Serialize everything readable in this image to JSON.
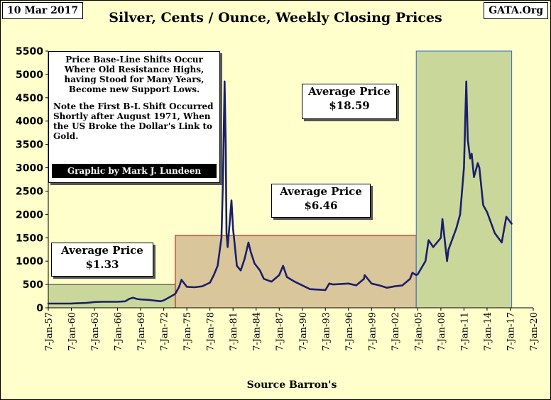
{
  "header": {
    "date": "10 Mar 2017",
    "title": "Silver, Cents / Ounce, Weekly Closing Prices",
    "brand": "GATA.Org"
  },
  "note": {
    "line1": "Price Base-Line Shifts Occur Where Old Resistance Highs, having Stood for Many Years, Become new Support Lows.",
    "line2": "Note the First B-L Shift Occurred Shortly after August 1971, When the US Broke the Dollar's Link to Gold.",
    "credit": "Graphic by Mark J. Lundeen"
  },
  "averages": [
    {
      "label": "Average Price",
      "value": "$1.33"
    },
    {
      "label": "Average Price",
      "value": "$6.46"
    },
    {
      "label": "Average Price",
      "value": "$18.59"
    }
  ],
  "source": "Source Barron's",
  "colors": {
    "background": "#ffffcc",
    "line": "#1a1f6b",
    "era1_fill": "#c9d79b",
    "era2_fill": "#d9c69a",
    "era3_fill": "#c9d79b",
    "era2_border": "#cc0000",
    "era3_border": "#3366cc"
  },
  "chart_data": {
    "type": "line",
    "title": "Silver, Cents / Ounce, Weekly Closing Prices",
    "xlabel": "Source Barron's",
    "ylabel": "",
    "grid": false,
    "legend": "none",
    "ylim": [
      0,
      5500
    ],
    "yticks": [
      0,
      500,
      1000,
      1500,
      2000,
      2500,
      3000,
      3500,
      4000,
      4500,
      5000,
      5500
    ],
    "xlim": [
      1957.0,
      2020.0
    ],
    "xticks": [
      "7-Jan-57",
      "7-Jan-60",
      "7-Jan-63",
      "7-Jan-66",
      "7-Jan-69",
      "7-Jan-72",
      "7-Jan-75",
      "7-Jan-78",
      "7-Jan-81",
      "7-Jan-84",
      "7-Jan-87",
      "7-Jan-90",
      "7-Jan-93",
      "7-Jan-96",
      "7-Jan-99",
      "7-Jan-02",
      "7-Jan-05",
      "7-Jan-08",
      "7-Jan-11",
      "7-Jan-14",
      "7-Jan-17",
      "7-Jan-20"
    ],
    "eras": [
      {
        "x_start": 1957.0,
        "x_end": 1973.5,
        "y_top": 500,
        "average": "$1.33"
      },
      {
        "x_start": 1973.5,
        "x_end": 2004.8,
        "y_top": 1550,
        "average": "$6.46"
      },
      {
        "x_start": 2004.8,
        "x_end": 2017.2,
        "y_top": 5500,
        "average": "$18.59"
      }
    ],
    "series": [
      {
        "x": [
          1957.0,
          1960.0,
          1962.0,
          1963.0,
          1964.0,
          1966.0,
          1967.0,
          1967.5,
          1968.0,
          1968.5,
          1969.0,
          1970.0,
          1971.0,
          1971.6,
          1972.0,
          1973.0,
          1973.5,
          1974.0,
          1974.3,
          1975.0,
          1976.0,
          1977.0,
          1978.0,
          1978.5,
          1979.0,
          1979.5,
          1979.7,
          1979.9,
          1980.05,
          1980.15,
          1980.3,
          1980.5,
          1980.8,
          1981.0,
          1981.5,
          1982.0,
          1982.5,
          1983.0,
          1983.3,
          1983.8,
          1984.5,
          1985.0,
          1986.0,
          1987.0,
          1987.5,
          1988.0,
          1989.0,
          1990.0,
          1991.0,
          1992.0,
          1993.0,
          1993.5,
          1994.0,
          1995.0,
          1996.0,
          1997.0,
          1998.0,
          1998.1,
          1999.0,
          2000.0,
          2001.0,
          2002.0,
          2003.0,
          2004.0,
          2004.3,
          2004.8,
          2005.0,
          2006.0,
          2006.4,
          2007.0,
          2008.0,
          2008.2,
          2008.8,
          2009.0,
          2010.0,
          2010.5,
          2011.0,
          2011.3,
          2011.5,
          2011.8,
          2012.0,
          2012.3,
          2012.8,
          2013.0,
          2013.5,
          2014.0,
          2015.0,
          2015.9,
          2016.5,
          2017.2
        ],
        "y": [
          91,
          92,
          105,
          125,
          129,
          129,
          140,
          190,
          215,
          190,
          180,
          170,
          150,
          140,
          160,
          250,
          300,
          450,
          600,
          450,
          440,
          460,
          540,
          700,
          900,
          1500,
          2800,
          4850,
          3500,
          1600,
          1300,
          1700,
          2300,
          1700,
          900,
          800,
          1050,
          1400,
          1200,
          950,
          800,
          620,
          560,
          700,
          900,
          660,
          560,
          480,
          400,
          390,
          380,
          520,
          500,
          510,
          520,
          480,
          620,
          700,
          520,
          480,
          430,
          460,
          480,
          620,
          750,
          700,
          720,
          1000,
          1450,
          1300,
          1500,
          1900,
          1000,
          1250,
          1700,
          2000,
          3000,
          4850,
          3600,
          3200,
          3300,
          2800,
          3100,
          3000,
          2200,
          2050,
          1600,
          1400,
          1950,
          1800
        ]
      }
    ]
  }
}
